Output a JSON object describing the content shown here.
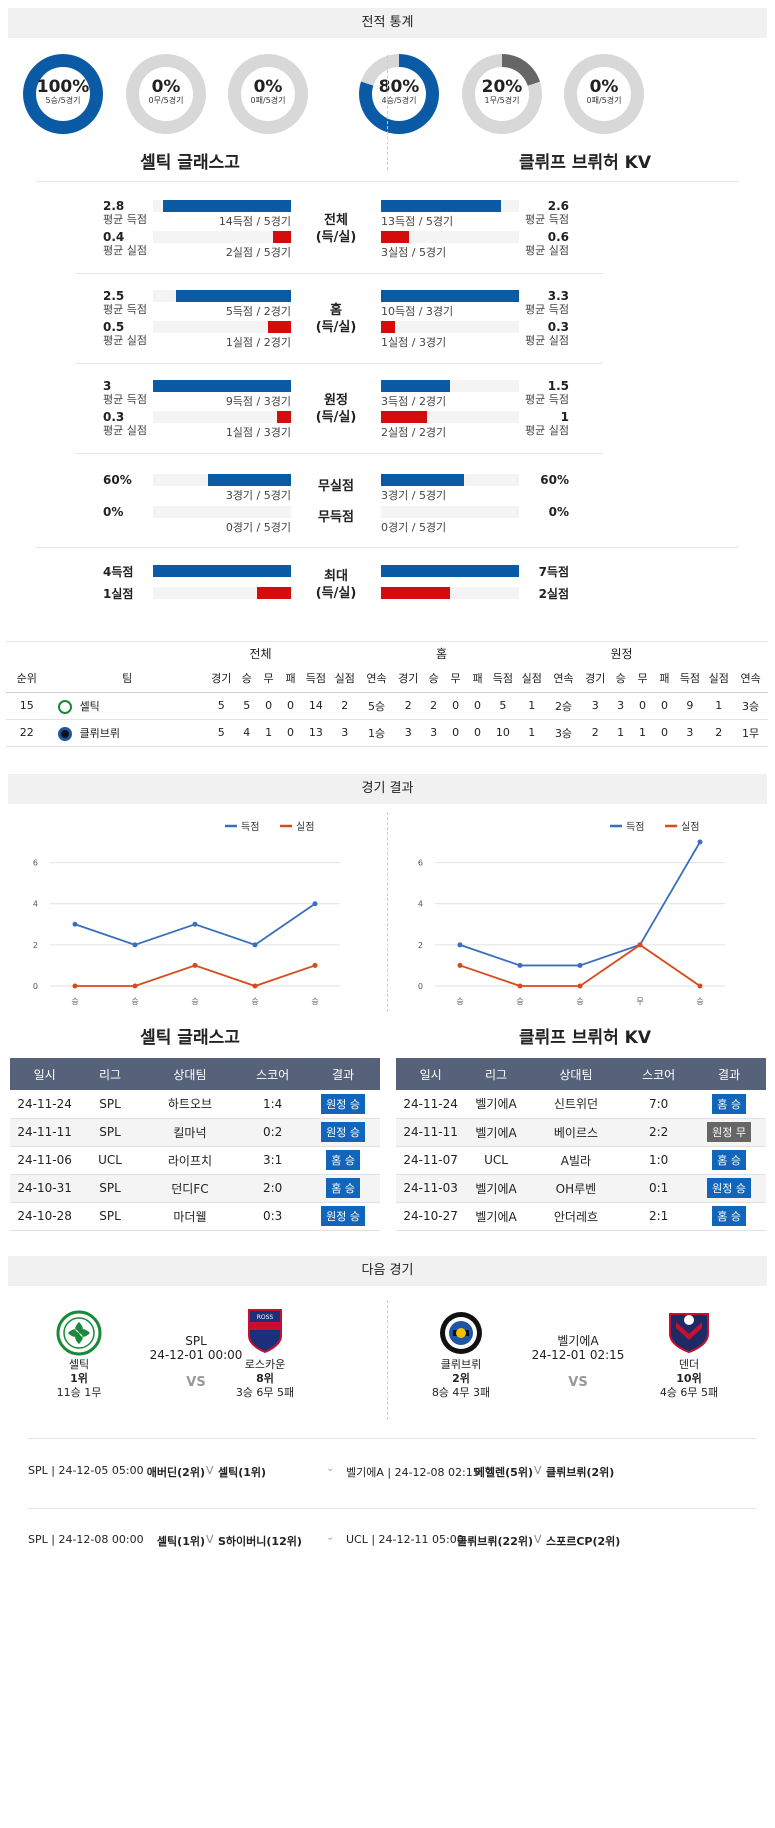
{
  "sections": {
    "stats_title": "전적 통계",
    "results_title": "경기 결과",
    "next_title": "다음 경기"
  },
  "colors": {
    "blue": "#0a5aa5",
    "red": "#d40c0c",
    "gray": "#d8d8d8",
    "dark_gray": "#666666"
  },
  "donuts": [
    {
      "pct": "100%",
      "sub": "5승/5경기",
      "value": 1.0
    },
    {
      "pct": "0%",
      "sub": "0무/5경기",
      "value": 0
    },
    {
      "pct": "0%",
      "sub": "0패/5경기",
      "value": 0
    },
    {
      "pct": "80%",
      "sub": "4승/5경기",
      "value": 0.8
    },
    {
      "pct": "20%",
      "sub": "1무/5경기",
      "value": 0.2
    },
    {
      "pct": "0%",
      "sub": "0패/5경기",
      "value": 0
    }
  ],
  "teams": {
    "left": "셀틱 글래스고",
    "right": "클뤼프 브뤼허 KV"
  },
  "stat_groups": [
    {
      "label1": "전체",
      "label2": "(득/실)",
      "rows": [
        {
          "lv": "2.8",
          "llabel": "평균 득점",
          "lcap": "14득점 / 5경기",
          "lfrac": 0.93,
          "color": "blue",
          "rv": "2.6",
          "rlabel": "평균 득점",
          "rcap": "13득점 / 5경기",
          "rfrac": 0.87
        },
        {
          "lv": "0.4",
          "llabel": "평균 실점",
          "lcap": "2실점 / 5경기",
          "lfrac": 0.13,
          "color": "red",
          "rv": "0.6",
          "rlabel": "평균 실점",
          "rcap": "3실점 / 5경기",
          "rfrac": 0.2
        }
      ]
    },
    {
      "label1": "홈",
      "label2": "(득/실)",
      "rows": [
        {
          "lv": "2.5",
          "llabel": "평균 득점",
          "lcap": "5득점 / 2경기",
          "lfrac": 0.83,
          "color": "blue",
          "rv": "3.3",
          "rlabel": "평균 득점",
          "rcap": "10득점 / 3경기",
          "rfrac": 1.0
        },
        {
          "lv": "0.5",
          "llabel": "평균 실점",
          "lcap": "1실점 / 2경기",
          "lfrac": 0.17,
          "color": "red",
          "rv": "0.3",
          "rlabel": "평균 실점",
          "rcap": "1실점 / 3경기",
          "rfrac": 0.1
        }
      ]
    },
    {
      "label1": "원정",
      "label2": "(득/실)",
      "rows": [
        {
          "lv": "3",
          "llabel": "평균 득점",
          "lcap": "9득점 / 3경기",
          "lfrac": 1.0,
          "color": "blue",
          "rv": "1.5",
          "rlabel": "평균 득점",
          "rcap": "3득점 / 2경기",
          "rfrac": 0.5
        },
        {
          "lv": "0.3",
          "llabel": "평균 실점",
          "lcap": "1실점 / 3경기",
          "lfrac": 0.1,
          "color": "red",
          "rv": "1",
          "rlabel": "평균 실점",
          "rcap": "2실점 / 2경기",
          "rfrac": 0.33
        }
      ]
    }
  ],
  "cleansheet": {
    "label1": "무실점",
    "label2": "무득점",
    "rows": [
      {
        "lv": "60%",
        "lcap": "3경기 / 5경기",
        "lfrac": 0.6,
        "rv": "60%",
        "rcap": "3경기 / 5경기",
        "rfrac": 0.6
      },
      {
        "lv": "0%",
        "lcap": "0경기 / 5경기",
        "lfrac": 0,
        "rv": "0%",
        "rcap": "0경기 / 5경기",
        "rfrac": 0
      }
    ]
  },
  "max": {
    "label1": "최대",
    "label2": "(득/실)",
    "rows": [
      {
        "lv": "4득점",
        "lfrac": 1.0,
        "color": "blue",
        "rv": "7득점",
        "rfrac": 1.0
      },
      {
        "lv": "1실점",
        "lfrac": 0.25,
        "color": "red",
        "rv": "2실점",
        "rfrac": 0.5
      }
    ]
  },
  "standings": {
    "groups": [
      "전체",
      "홈",
      "원정"
    ],
    "headers": [
      "순위",
      "팀",
      "경기",
      "승",
      "무",
      "패",
      "득점",
      "실점",
      "연속",
      "경기",
      "승",
      "무",
      "패",
      "득점",
      "실점",
      "연속",
      "경기",
      "승",
      "무",
      "패",
      "득점",
      "실점",
      "연속"
    ],
    "rows": [
      [
        "15",
        "셀틱",
        "5",
        "5",
        "0",
        "0",
        "14",
        "2",
        "5승",
        "2",
        "2",
        "0",
        "0",
        "5",
        "1",
        "2승",
        "3",
        "3",
        "0",
        "0",
        "9",
        "1",
        "3승"
      ],
      [
        "22",
        "클뤼브뤼",
        "5",
        "4",
        "1",
        "0",
        "13",
        "3",
        "1승",
        "3",
        "3",
        "0",
        "0",
        "10",
        "1",
        "3승",
        "2",
        "1",
        "1",
        "0",
        "3",
        "2",
        "1무"
      ]
    ]
  },
  "chart_data": [
    {
      "type": "line",
      "title": "셀틱 글래스고",
      "categories": [
        "승",
        "승",
        "승",
        "승",
        "승"
      ],
      "ylim": [
        0,
        7
      ],
      "yticks": [
        "0",
        "2",
        "4",
        "6"
      ],
      "legend": "top-right",
      "series": [
        {
          "name": "득점",
          "values": [
            3,
            2,
            3,
            2,
            4
          ],
          "color": "#3a6fc0"
        },
        {
          "name": "실점",
          "values": [
            0,
            0,
            1,
            0,
            1
          ],
          "color": "#d84a1b"
        }
      ]
    },
    {
      "type": "line",
      "title": "클뤼프 브뤼허 KV",
      "categories": [
        "승",
        "승",
        "승",
        "무",
        "승"
      ],
      "ylim": [
        0,
        7
      ],
      "yticks": [
        "0",
        "2",
        "4",
        "6"
      ],
      "legend": "top-right",
      "series": [
        {
          "name": "득점",
          "values": [
            2,
            1,
            1,
            2,
            7
          ],
          "color": "#3a6fc0"
        },
        {
          "name": "실점",
          "values": [
            1,
            0,
            0,
            2,
            0
          ],
          "color": "#d84a1b"
        }
      ]
    }
  ],
  "results": {
    "headers": [
      "일시",
      "리그",
      "상대팀",
      "스코어",
      "결과"
    ],
    "left": [
      [
        "24-11-24",
        "SPL",
        "하트오브",
        "1:4",
        "원정 승"
      ],
      [
        "24-11-11",
        "SPL",
        "킬마넉",
        "0:2",
        "원정 승"
      ],
      [
        "24-11-06",
        "UCL",
        "라이프치",
        "3:1",
        "홈 승"
      ],
      [
        "24-10-31",
        "SPL",
        "던디FC",
        "2:0",
        "홈 승"
      ],
      [
        "24-10-28",
        "SPL",
        "마더웰",
        "0:3",
        "원정 승"
      ]
    ],
    "right": [
      [
        "24-11-24",
        "벨기에A",
        "신트위던",
        "7:0",
        "홈 승"
      ],
      [
        "24-11-11",
        "벨기에A",
        "베이르스",
        "2:2",
        "원정 무"
      ],
      [
        "24-11-07",
        "UCL",
        "A빌라",
        "1:0",
        "홈 승"
      ],
      [
        "24-11-03",
        "벨기에A",
        "OH루벤",
        "0:1",
        "원정 승"
      ],
      [
        "24-10-27",
        "벨기에A",
        "안더레흐",
        "2:1",
        "홈 승"
      ]
    ]
  },
  "next": {
    "left": {
      "league": "SPL",
      "date": "24-12-01 00:00",
      "vs": "VS",
      "home": {
        "name": "셀틱",
        "rank": "1위",
        "record": "11승 1무"
      },
      "away": {
        "name": "로스카운",
        "rank": "8위",
        "record": "3승 6무 5패"
      }
    },
    "right": {
      "league": "벨기에A",
      "date": "24-12-01 02:15",
      "vs": "VS",
      "home": {
        "name": "클뤼브뤼",
        "rank": "2위",
        "record": "8승 4무 3패"
      },
      "away": {
        "name": "덴더",
        "rank": "10위",
        "record": "4승 6무 5패"
      }
    }
  },
  "schedule": {
    "left": [
      {
        "info": "SPL | 24-12-05 05:00",
        "home": "애버딘(2위)",
        "v": "V",
        "away": "셀틱(1위)"
      },
      {
        "info": "SPL | 24-12-08 00:00",
        "home": "셀틱(1위)",
        "v": "V",
        "away": "S하이버니(12위)"
      }
    ],
    "right": [
      {
        "info": "벨기에A | 24-12-08 02:15",
        "home": "메헬렌(5위)",
        "v": "V",
        "away": "클뤼브뤼(2위)"
      },
      {
        "info": "UCL | 24-12-11 05:00",
        "home": "클뤼브뤼(22위)",
        "v": "V",
        "away": "스포르CP(2위)"
      }
    ]
  }
}
